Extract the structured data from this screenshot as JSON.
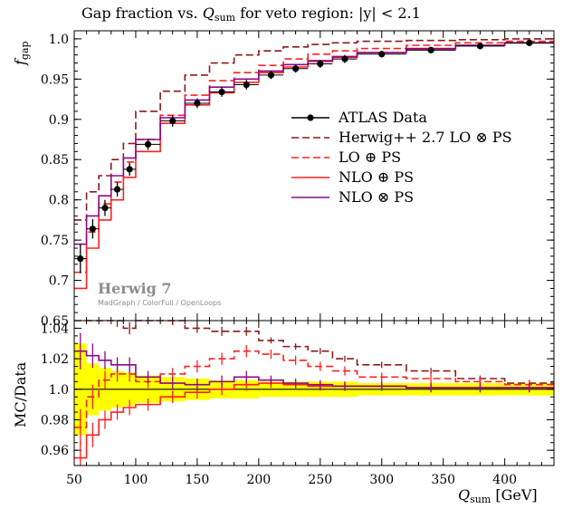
{
  "chart_data": {
    "type": "line",
    "title": "Gap fraction vs. Q_sum for veto region: |y| < 2.1",
    "title_parts": {
      "prefix": "Gap fraction vs. ",
      "var": "Q",
      "var_sub": "sum",
      "suffix": " for veto region: |y| < 2.1"
    },
    "xlabel": {
      "var": "Q",
      "sub": "sum",
      "unit": " [GeV]"
    },
    "ylabel_main": {
      "var": "f",
      "sub": "gap"
    },
    "ylabel_ratio": "MC/Data",
    "xlim": [
      50,
      440
    ],
    "ylim_main": [
      0.65,
      1.01
    ],
    "ylim_ratio": [
      0.95,
      1.045
    ],
    "x_ticks": [
      "50",
      "100",
      "150",
      "200",
      "250",
      "300",
      "350",
      "400"
    ],
    "y_ticks_main": [
      "0.65",
      "0.7",
      "0.75",
      "0.8",
      "0.85",
      "0.9",
      "0.95",
      "1.0"
    ],
    "y_ticks_ratio": [
      "0.96",
      "0.98",
      "1.0",
      "1.02",
      "1.04"
    ],
    "legend_position": "right",
    "brand": "Herwig 7",
    "brand_sub": "MadGraph / ColorFull / OpenLoops",
    "bin_edges": [
      50,
      60,
      70,
      80,
      90,
      100,
      120,
      140,
      160,
      180,
      200,
      220,
      240,
      260,
      280,
      320,
      360,
      400,
      440
    ],
    "data": {
      "name": "ATLAS Data",
      "x": [
        55,
        65,
        75,
        85,
        95,
        110,
        130,
        150,
        170,
        190,
        210,
        230,
        250,
        270,
        300,
        340,
        380,
        420
      ],
      "y": [
        0.727,
        0.764,
        0.79,
        0.813,
        0.838,
        0.869,
        0.898,
        0.92,
        0.934,
        0.943,
        0.955,
        0.963,
        0.969,
        0.975,
        0.981,
        0.986,
        0.991,
        0.995
      ],
      "yerr": [
        0.018,
        0.012,
        0.01,
        0.009,
        0.008,
        0.007,
        0.007,
        0.006,
        0.006,
        0.006,
        0.005,
        0.005,
        0.005,
        0.005,
        0.004,
        0.004,
        0.004,
        0.004
      ]
    },
    "series": [
      {
        "name": "Herwig++ 2.7 LO ⊗ PS",
        "values": [
          0.775,
          0.81,
          0.83,
          0.85,
          0.87,
          0.91,
          0.935,
          0.955,
          0.97,
          0.98,
          0.985,
          0.99,
          0.993,
          0.995,
          0.997,
          0.998,
          0.999,
          1.0
        ]
      },
      {
        "name": "LO ⊕ PS",
        "values": [
          0.71,
          0.76,
          0.795,
          0.822,
          0.847,
          0.875,
          0.905,
          0.93,
          0.948,
          0.958,
          0.967,
          0.975,
          0.981,
          0.985,
          0.988,
          0.992,
          0.995,
          0.997
        ]
      },
      {
        "name": "NLO ⊕ PS",
        "values": [
          0.69,
          0.74,
          0.775,
          0.8,
          0.828,
          0.86,
          0.895,
          0.918,
          0.933,
          0.946,
          0.958,
          0.965,
          0.972,
          0.977,
          0.983,
          0.987,
          0.992,
          0.995
        ]
      },
      {
        "name": "NLO ⊗ PS",
        "values": [
          0.745,
          0.78,
          0.805,
          0.83,
          0.852,
          0.875,
          0.902,
          0.924,
          0.94,
          0.95,
          0.96,
          0.968,
          0.973,
          0.978,
          0.983,
          0.988,
          0.992,
          0.995
        ]
      }
    ],
    "ratio": {
      "band_halfwidth": [
        0.03,
        0.017,
        0.014,
        0.012,
        0.011,
        0.009,
        0.008,
        0.007,
        0.006,
        0.006,
        0.005,
        0.005,
        0.005,
        0.005,
        0.004,
        0.004,
        0.004,
        0.004
      ],
      "series": [
        {
          "name": "Herwig++ 2.7 LO ⊗ PS",
          "values": [
            1.066,
            1.06,
            1.051,
            1.045,
            1.04,
            1.048,
            1.045,
            1.04,
            1.038,
            1.038,
            1.032,
            1.028,
            1.025,
            1.02,
            1.016,
            1.012,
            1.007,
            1.004
          ],
          "err": [
            0.006,
            0.005,
            0.004,
            0.004,
            0.004,
            0.003,
            0.003,
            0.003,
            0.003,
            0.003,
            0.002,
            0.002,
            0.002,
            0.002,
            0.002,
            0.002,
            0.002,
            0.002
          ]
        },
        {
          "name": "LO ⊕ PS",
          "values": [
            0.975,
            0.995,
            1.006,
            1.01,
            1.01,
            1.005,
            1.01,
            1.015,
            1.02,
            1.025,
            1.023,
            1.019,
            1.015,
            1.012,
            1.008,
            1.007,
            1.005,
            1.003
          ],
          "err": [
            0.012,
            0.008,
            0.006,
            0.005,
            0.005,
            0.004,
            0.004,
            0.004,
            0.004,
            0.004,
            0.003,
            0.003,
            0.003,
            0.003,
            0.003,
            0.003,
            0.003,
            0.003
          ]
        },
        {
          "name": "NLO ⊕ PS",
          "values": [
            0.955,
            0.97,
            0.98,
            0.985,
            0.988,
            0.99,
            0.995,
            0.998,
            1.0,
            1.003,
            1.004,
            1.003,
            1.002,
            1.002,
            1.002,
            1.001,
            1.001,
            1.001
          ],
          "err": [
            0.012,
            0.008,
            0.006,
            0.005,
            0.005,
            0.004,
            0.004,
            0.004,
            0.004,
            0.004,
            0.003,
            0.003,
            0.003,
            0.003,
            0.003,
            0.003,
            0.003,
            0.003
          ]
        },
        {
          "name": "NLO ⊗ PS",
          "values": [
            1.025,
            1.022,
            1.019,
            1.016,
            1.016,
            1.008,
            1.004,
            1.003,
            1.005,
            1.008,
            1.006,
            1.004,
            1.003,
            1.002,
            1.002,
            1.001,
            1.001,
            1.001
          ],
          "err": [
            0.012,
            0.008,
            0.006,
            0.005,
            0.005,
            0.004,
            0.004,
            0.004,
            0.004,
            0.004,
            0.003,
            0.003,
            0.003,
            0.003,
            0.003,
            0.003,
            0.003,
            0.003
          ]
        }
      ]
    },
    "colors": {
      "data": "#000000",
      "herwig_lo_ps": "#8b1a1a",
      "lo_plus_ps": "#ff2020",
      "nlo_plus_ps": "#ff2020",
      "nlo_times_ps": "#8b0a8b",
      "band": "#ffff00"
    }
  }
}
